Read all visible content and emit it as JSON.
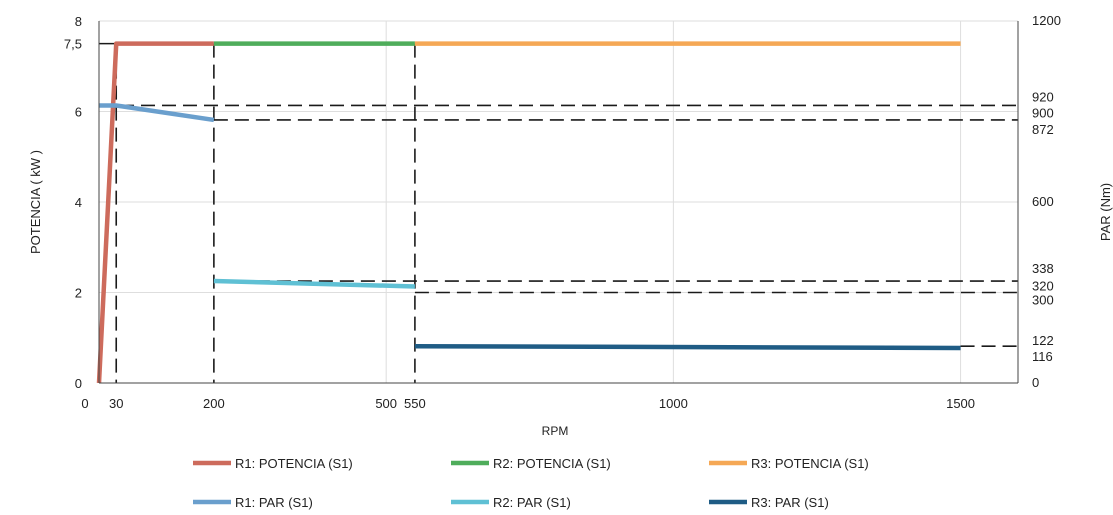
{
  "chart_data": {
    "type": "line",
    "xlabel": "RPM",
    "ylabel_left": "POTENCIA (     kW )",
    "ylabel_right": "PAR (Nm)",
    "xlim": [
      0,
      1600
    ],
    "ylim_left": [
      0,
      8
    ],
    "ylim_right": [
      0,
      1200
    ],
    "x_ticks": [
      "0",
      "30",
      "200",
      "500",
      "550",
      "1000",
      "1500"
    ],
    "y_left_ticks": [
      "0",
      "2",
      "4",
      "6",
      "7,5",
      "8"
    ],
    "y_right_ticks": [
      "0",
      "116",
      "122",
      "300",
      "320",
      "338",
      "600",
      "872",
      "900",
      "920",
      "1200"
    ],
    "grid": true,
    "legend_position": "bottom",
    "series": [
      {
        "name": "R1: POTENCIA (S1)",
        "axis": "left",
        "color": "#cd6b5c",
        "x": [
          0,
          30,
          200
        ],
        "y": [
          0,
          7.5,
          7.5
        ]
      },
      {
        "name": "R2: POTENCIA (S1)",
        "axis": "left",
        "color": "#4fad5b",
        "x": [
          200,
          550
        ],
        "y": [
          7.5,
          7.5
        ]
      },
      {
        "name": "R3: POTENCIA (S1)",
        "axis": "left",
        "color": "#f5a855",
        "x": [
          550,
          1500
        ],
        "y": [
          7.5,
          7.5
        ]
      },
      {
        "name": "R1: PAR (S1)",
        "axis": "right",
        "color": "#6a9fcd",
        "x": [
          0,
          30,
          200
        ],
        "y": [
          920,
          920,
          872
        ]
      },
      {
        "name": "R2: PAR (S1)",
        "axis": "right",
        "color": "#5fc0d4",
        "x": [
          200,
          550
        ],
        "y": [
          338,
          320
        ]
      },
      {
        "name": "R3: PAR (S1)",
        "axis": "right",
        "color": "#1f5c85",
        "x": [
          550,
          1500
        ],
        "y": [
          122,
          116
        ]
      }
    ],
    "reference_lines": {
      "vertical_x": [
        30,
        200,
        550
      ],
      "horizontal_left": [
        7.5
      ],
      "horizontal_right": [
        {
          "value": 920,
          "x_from": 0
        },
        {
          "value": 872,
          "x_from": 200
        },
        {
          "value": 338,
          "x_from": 200
        },
        {
          "value": 300,
          "x_from": 550
        },
        {
          "value": 122,
          "x_from": 1500
        }
      ]
    }
  }
}
